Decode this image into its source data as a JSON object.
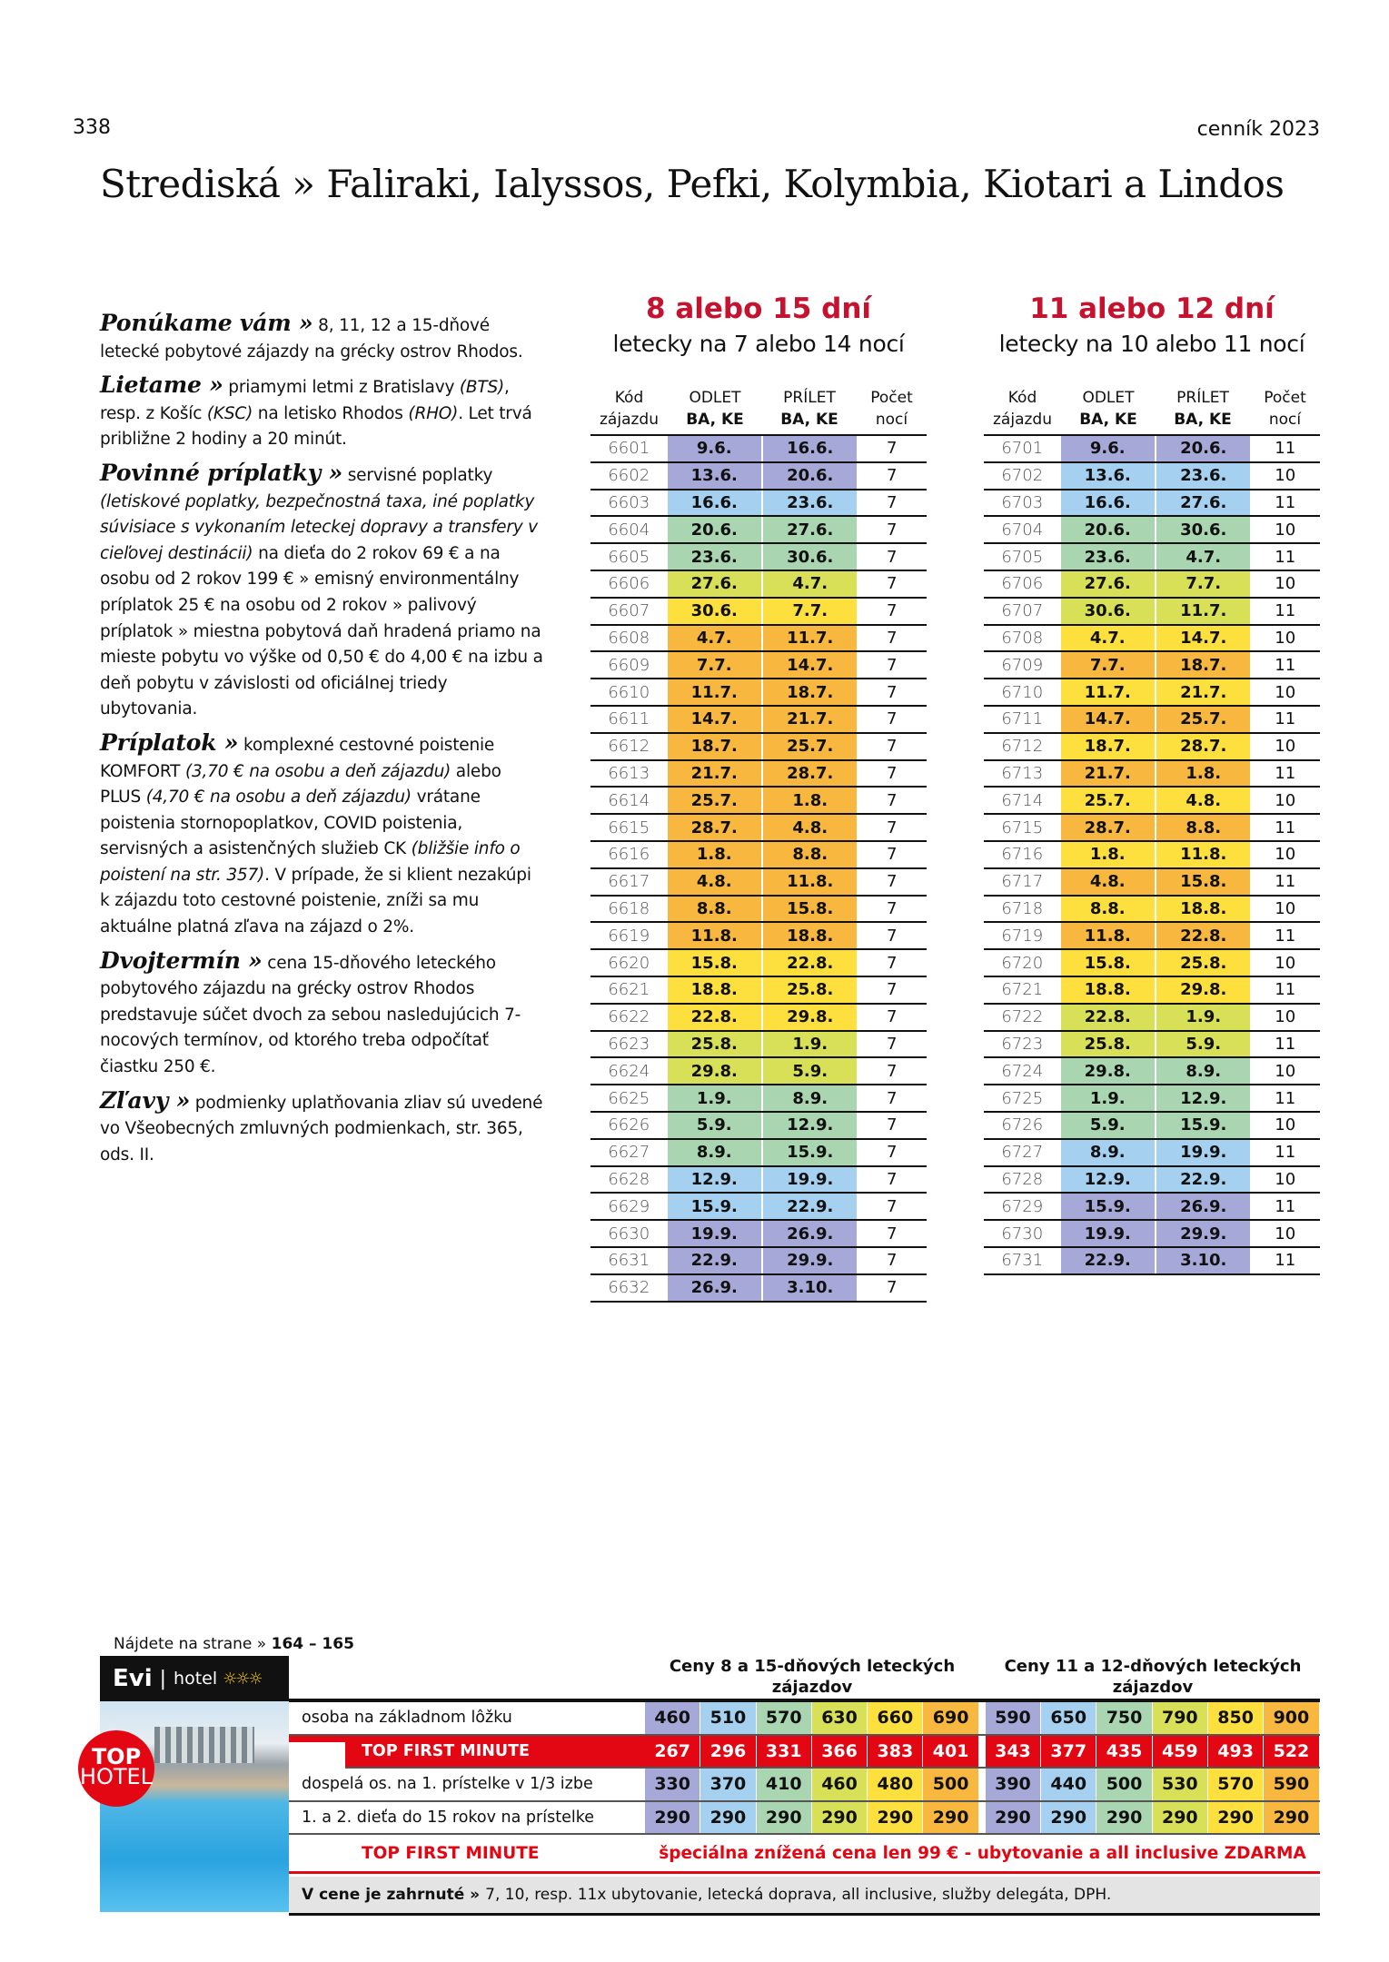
{
  "header": {
    "page_number": "338",
    "catalog": "cenník 2023",
    "title": "Strediská » Faliraki, Ialyssos, Pefki, Kolymbia, Kiotari a Lindos"
  },
  "colors": {
    "P": "#a6a9d8",
    "B": "#a6d0f0",
    "G": "#a9d6b0",
    "L": "#d8e057",
    "Y": "#fde03e",
    "O": "#f8b73e",
    "red": "#e30613",
    "title_red": "#c4122f"
  },
  "info": [
    {
      "heading": "Ponúkame vám »",
      "parts": [
        {
          "t": " 8, 11, 12 a 15-dňové letecké pobytové zájazdy na grécky ostrov Rhodos."
        }
      ]
    },
    {
      "heading": "Lietame »",
      "parts": [
        {
          "t": " priamymi letmi z Bratislavy "
        },
        {
          "t": "(BTS)",
          "i": true
        },
        {
          "t": ", resp. z Košíc "
        },
        {
          "t": "(KSC)",
          "i": true
        },
        {
          "t": " na letisko Rhodos "
        },
        {
          "t": "(RHO)",
          "i": true
        },
        {
          "t": ". Let trvá približne 2 hodiny a 20 minút."
        }
      ]
    },
    {
      "heading": "Povinné príplatky »",
      "parts": [
        {
          "t": " servisné poplatky "
        },
        {
          "t": "(letiskové poplatky, bezpečnostná taxa, iné poplatky súvisiace s vykonaním leteckej dopravy a transfery v cieľovej destinácii)",
          "i": true
        },
        {
          "t": " na dieťa do 2 rokov 69 € a na osobu od 2 rokov 199 € » emisný environmentálny príplatok 25 € na osobu od 2 rokov » palivový príplatok » miestna pobytová daň hradená priamo na mieste pobytu vo výške od 0,50 € do 4,00 € na izbu a deň pobytu v závislosti od oficiálnej triedy ubytovania."
        }
      ]
    },
    {
      "heading": "Príplatok »",
      "parts": [
        {
          "t": " komplexné cestovné poistenie KOMFORT "
        },
        {
          "t": "(3,70 € na osobu a deň zájazdu)",
          "i": true
        },
        {
          "t": " alebo PLUS "
        },
        {
          "t": "(4,70 € na osobu a deň zájazdu)",
          "i": true
        },
        {
          "t": " vrátane poistenia stornopoplatkov, COVID poistenia, servisných a asistenčných služieb CK "
        },
        {
          "t": "(bližšie info o poistení na str. 357)",
          "i": true
        },
        {
          "t": ". V prípade, že si klient nezakúpi k zájazdu toto cestovné poistenie, zníži sa mu aktuálne platná zľava na zájazd o 2%."
        }
      ]
    },
    {
      "heading": "Dvojtermín »",
      "parts": [
        {
          "t": " cena 15-dňového leteckého pobytového zájazdu na grécky ostrov Rhodos predstavuje súčet dvoch za sebou nasledujúcich 7-nocových termínov, od ktorého treba odpočítať čiastku 250 €."
        }
      ]
    },
    {
      "heading": "Zľavy »",
      "parts": [
        {
          "t": " podmienky uplatňovania zliav sú uvedené vo Všeobecných zmluvných podmienkach, str. 365, ods. II."
        }
      ]
    }
  ],
  "columns": {
    "code1": "Kód",
    "code2": "zájazdu",
    "dep1": "ODLET",
    "dep2": "BA, KE",
    "arr1": "PRÍLET",
    "arr2": "BA, KE",
    "n1": "Počet",
    "n2": "nocí"
  },
  "tables": [
    {
      "title": "8 alebo 15 dní",
      "subtitle": "letecky na 7 alebo 14 nocí",
      "rows": [
        [
          "6601",
          "9.6.",
          "16.6.",
          "7",
          "P"
        ],
        [
          "6602",
          "13.6.",
          "20.6.",
          "7",
          "P"
        ],
        [
          "6603",
          "16.6.",
          "23.6.",
          "7",
          "B"
        ],
        [
          "6604",
          "20.6.",
          "27.6.",
          "7",
          "G"
        ],
        [
          "6605",
          "23.6.",
          "30.6.",
          "7",
          "G"
        ],
        [
          "6606",
          "27.6.",
          "4.7.",
          "7",
          "L"
        ],
        [
          "6607",
          "30.6.",
          "7.7.",
          "7",
          "Y"
        ],
        [
          "6608",
          "4.7.",
          "11.7.",
          "7",
          "O"
        ],
        [
          "6609",
          "7.7.",
          "14.7.",
          "7",
          "O"
        ],
        [
          "6610",
          "11.7.",
          "18.7.",
          "7",
          "O"
        ],
        [
          "6611",
          "14.7.",
          "21.7.",
          "7",
          "O"
        ],
        [
          "6612",
          "18.7.",
          "25.7.",
          "7",
          "O"
        ],
        [
          "6613",
          "21.7.",
          "28.7.",
          "7",
          "O"
        ],
        [
          "6614",
          "25.7.",
          "1.8.",
          "7",
          "O"
        ],
        [
          "6615",
          "28.7.",
          "4.8.",
          "7",
          "O"
        ],
        [
          "6616",
          "1.8.",
          "8.8.",
          "7",
          "O"
        ],
        [
          "6617",
          "4.8.",
          "11.8.",
          "7",
          "O"
        ],
        [
          "6618",
          "8.8.",
          "15.8.",
          "7",
          "O"
        ],
        [
          "6619",
          "11.8.",
          "18.8.",
          "7",
          "O"
        ],
        [
          "6620",
          "15.8.",
          "22.8.",
          "7",
          "Y"
        ],
        [
          "6621",
          "18.8.",
          "25.8.",
          "7",
          "Y"
        ],
        [
          "6622",
          "22.8.",
          "29.8.",
          "7",
          "Y"
        ],
        [
          "6623",
          "25.8.",
          "1.9.",
          "7",
          "L"
        ],
        [
          "6624",
          "29.8.",
          "5.9.",
          "7",
          "L"
        ],
        [
          "6625",
          "1.9.",
          "8.9.",
          "7",
          "G"
        ],
        [
          "6626",
          "5.9.",
          "12.9.",
          "7",
          "G"
        ],
        [
          "6627",
          "8.9.",
          "15.9.",
          "7",
          "G"
        ],
        [
          "6628",
          "12.9.",
          "19.9.",
          "7",
          "B"
        ],
        [
          "6629",
          "15.9.",
          "22.9.",
          "7",
          "B"
        ],
        [
          "6630",
          "19.9.",
          "26.9.",
          "7",
          "P"
        ],
        [
          "6631",
          "22.9.",
          "29.9.",
          "7",
          "P"
        ],
        [
          "6632",
          "26.9.",
          "3.10.",
          "7",
          "P"
        ]
      ]
    },
    {
      "title": "11 alebo 12 dní",
      "subtitle": "letecky na 10 alebo 11 nocí",
      "rows": [
        [
          "6701",
          "9.6.",
          "20.6.",
          "11",
          "P"
        ],
        [
          "6702",
          "13.6.",
          "23.6.",
          "10",
          "B"
        ],
        [
          "6703",
          "16.6.",
          "27.6.",
          "11",
          "B"
        ],
        [
          "6704",
          "20.6.",
          "30.6.",
          "10",
          "G"
        ],
        [
          "6705",
          "23.6.",
          "4.7.",
          "11",
          "G"
        ],
        [
          "6706",
          "27.6.",
          "7.7.",
          "10",
          "L"
        ],
        [
          "6707",
          "30.6.",
          "11.7.",
          "11",
          "L"
        ],
        [
          "6708",
          "4.7.",
          "14.7.",
          "10",
          "Y"
        ],
        [
          "6709",
          "7.7.",
          "18.7.",
          "11",
          "O"
        ],
        [
          "6710",
          "11.7.",
          "21.7.",
          "10",
          "Y"
        ],
        [
          "6711",
          "14.7.",
          "25.7.",
          "11",
          "O"
        ],
        [
          "6712",
          "18.7.",
          "28.7.",
          "10",
          "Y"
        ],
        [
          "6713",
          "21.7.",
          "1.8.",
          "11",
          "O"
        ],
        [
          "6714",
          "25.7.",
          "4.8.",
          "10",
          "Y"
        ],
        [
          "6715",
          "28.7.",
          "8.8.",
          "11",
          "O"
        ],
        [
          "6716",
          "1.8.",
          "11.8.",
          "10",
          "Y"
        ],
        [
          "6717",
          "4.8.",
          "15.8.",
          "11",
          "O"
        ],
        [
          "6718",
          "8.8.",
          "18.8.",
          "10",
          "Y"
        ],
        [
          "6719",
          "11.8.",
          "22.8.",
          "11",
          "O"
        ],
        [
          "6720",
          "15.8.",
          "25.8.",
          "10",
          "Y"
        ],
        [
          "6721",
          "18.8.",
          "29.8.",
          "11",
          "Y"
        ],
        [
          "6722",
          "22.8.",
          "1.9.",
          "10",
          "L"
        ],
        [
          "6723",
          "25.8.",
          "5.9.",
          "11",
          "L"
        ],
        [
          "6724",
          "29.8.",
          "8.9.",
          "10",
          "G"
        ],
        [
          "6725",
          "1.9.",
          "12.9.",
          "11",
          "G"
        ],
        [
          "6726",
          "5.9.",
          "15.9.",
          "10",
          "G"
        ],
        [
          "6727",
          "8.9.",
          "19.9.",
          "11",
          "B"
        ],
        [
          "6728",
          "12.9.",
          "22.9.",
          "10",
          "B"
        ],
        [
          "6729",
          "15.9.",
          "26.9.",
          "11",
          "P"
        ],
        [
          "6730",
          "19.9.",
          "29.9.",
          "10",
          "P"
        ],
        [
          "6731",
          "22.9.",
          "3.10.",
          "11",
          "P"
        ]
      ]
    }
  ],
  "hotel": {
    "find_label": "Nájdete na strane »",
    "find_pages": "164 – 165",
    "name": "Evi",
    "separator": "|",
    "type": "hotel",
    "stars": "☼☼☼",
    "badge_top": "TOP",
    "badge_bottom": "HOTEL"
  },
  "prices": {
    "group_headers": [
      "Ceny 8 a 15-dňových leteckých zájazdov",
      "Ceny 11 a 12-dňových leteckých zájazdov"
    ],
    "column_colors": [
      "P",
      "B",
      "G",
      "L",
      "Y",
      "O"
    ],
    "rows": [
      {
        "label": "osoba na základnom lôžku",
        "values": [
          "460",
          "510",
          "570",
          "630",
          "660",
          "690",
          "590",
          "650",
          "750",
          "790",
          "850",
          "900"
        ]
      },
      {
        "label": "TOP FIRST MINUTE",
        "tfm": true,
        "values": [
          "267",
          "296",
          "331",
          "366",
          "383",
          "401",
          "343",
          "377",
          "435",
          "459",
          "493",
          "522"
        ]
      },
      {
        "label": "dospelá os. na 1. prístelke v 1/3 izbe",
        "values": [
          "330",
          "370",
          "410",
          "460",
          "480",
          "500",
          "390",
          "440",
          "500",
          "530",
          "570",
          "590"
        ]
      },
      {
        "label": "1. a 2. dieťa do 15 rokov na prístelke",
        "values": [
          "290",
          "290",
          "290",
          "290",
          "290",
          "290",
          "290",
          "290",
          "290",
          "290",
          "290",
          "290"
        ]
      }
    ],
    "tfm_note_label": "TOP FIRST MINUTE",
    "tfm_note": "špeciálna znížená cena len 99 € - ubytovanie a all inclusive ZDARMA",
    "included_label": "V cene je zahrnuté »",
    "included": "7, 10, resp. 11x ubytovanie, letecká doprava, all inclusive, služby delegáta, DPH."
  }
}
